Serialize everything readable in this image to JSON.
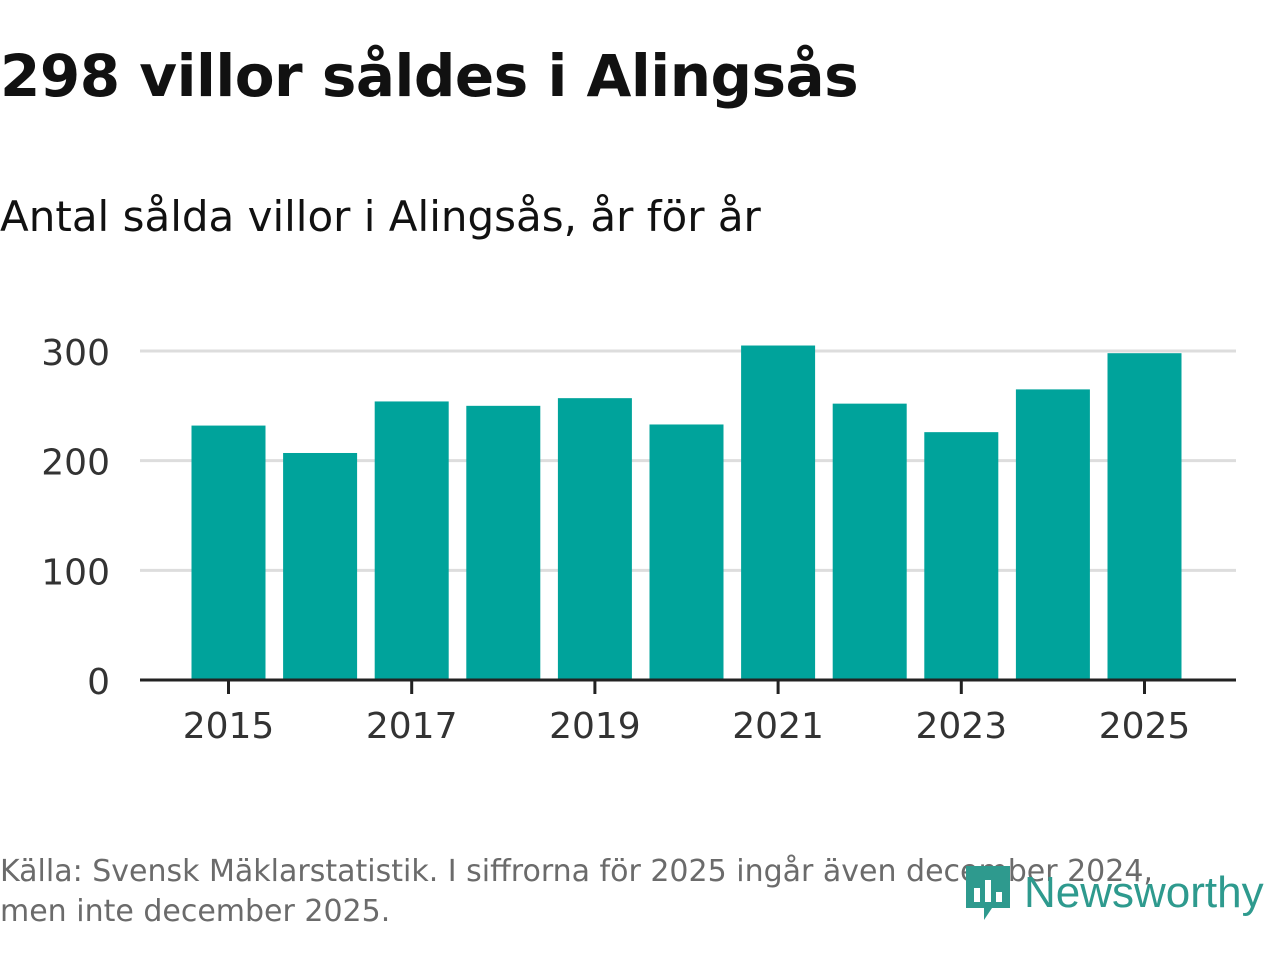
{
  "header": {
    "title": "298 villor såldes i Alingsås",
    "subtitle": "Antal sålda villor i Alingsås, år för år"
  },
  "footer": {
    "source_line1": "Källa: Svensk Mäklarstatistik. I siffrorna för 2025 ingår även december 2024,",
    "source_line2": "men inte december 2025.",
    "logo_text": "Newsworthy"
  },
  "colors": {
    "bar": "#00a39b",
    "grid": "#dddddd",
    "axis": "#222222",
    "tick_text": "#333333",
    "logo": "#2e9a8e"
  },
  "chart_data": {
    "type": "bar",
    "title": "298 villor såldes i Alingsås",
    "subtitle": "Antal sålda villor i Alingsås, år för år",
    "xlabel": "",
    "ylabel": "",
    "categories": [
      "2015",
      "2016",
      "2017",
      "2018",
      "2019",
      "2020",
      "2021",
      "2022",
      "2023",
      "2024",
      "2025"
    ],
    "values": [
      232,
      207,
      254,
      250,
      257,
      233,
      305,
      252,
      226,
      265,
      298
    ],
    "x_tick_labels": [
      "2015",
      "2017",
      "2019",
      "2021",
      "2023",
      "2025"
    ],
    "y_ticks": [
      0,
      100,
      200,
      300
    ],
    "ylim": [
      0,
      300
    ],
    "grid": true,
    "legend": "none"
  }
}
